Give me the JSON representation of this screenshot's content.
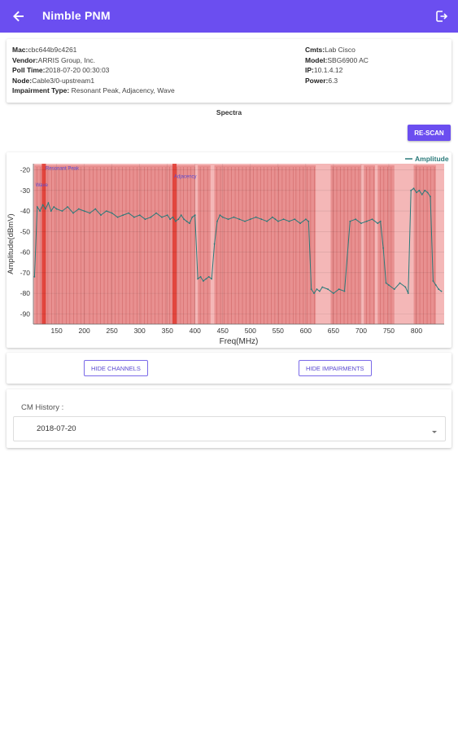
{
  "appbar": {
    "title": "Nimble PNM",
    "back_icon": "arrow-left-icon",
    "logout_icon": "logout-icon"
  },
  "device": {
    "mac_label": "Mac:",
    "mac": "cbc644b9c4261",
    "vendor_label": "Vendor:",
    "vendor": "ARRIS Group, Inc.",
    "poll_label": "Poll Time:",
    "poll_time": "2018-07-20 00:30:03",
    "node_label": "Node:",
    "node": "Cable3/0-upstream1",
    "impairment_label": "Impairment Type:",
    "impairment_type": "Resonant Peak, Adjacency, Wave",
    "cmts_label": "Cmts:",
    "cmts": "Lab Cisco",
    "model_label": "Model:",
    "model": "SBG6900 AC",
    "ip_label": "IP:",
    "ip": "10.1.4.12",
    "power_label": "Power:",
    "power": "6.3"
  },
  "spectra": {
    "title": "Spectra",
    "rescan_label": "RE-SCAN"
  },
  "chart_data": {
    "type": "line",
    "title": "",
    "xlabel": "Freq(MHz)",
    "ylabel": "Amplitude(dBmV)",
    "xlim": [
      108,
      850
    ],
    "ylim": [
      -95,
      -17
    ],
    "xticks": [
      150,
      200,
      250,
      300,
      350,
      400,
      450,
      500,
      550,
      600,
      650,
      700,
      750,
      800
    ],
    "yticks": [
      -20,
      -30,
      -40,
      -50,
      -60,
      -70,
      -80,
      -90
    ],
    "grid": true,
    "legend": "top-right",
    "series": [
      {
        "name": "Amplitude",
        "color": "#2a7a7a",
        "x": [
          110,
          115,
          120,
          125,
          130,
          135,
          140,
          145,
          150,
          160,
          170,
          180,
          190,
          200,
          210,
          220,
          230,
          240,
          250,
          260,
          270,
          280,
          290,
          300,
          310,
          320,
          330,
          340,
          350,
          355,
          360,
          365,
          370,
          375,
          380,
          385,
          390,
          395,
          400,
          405,
          410,
          415,
          420,
          425,
          430,
          435,
          440,
          445,
          450,
          460,
          470,
          480,
          490,
          500,
          510,
          520,
          530,
          540,
          545,
          550,
          560,
          570,
          580,
          590,
          600,
          605,
          610,
          615,
          620,
          625,
          630,
          640,
          650,
          660,
          670,
          680,
          690,
          700,
          710,
          720,
          730,
          735,
          740,
          745,
          750,
          760,
          770,
          780,
          785,
          790,
          795,
          800,
          805,
          810,
          815,
          820,
          825,
          830,
          835,
          840,
          845
        ],
        "y": [
          -72,
          -38,
          -40,
          -37,
          -39,
          -36,
          -40,
          -38,
          -39,
          -40,
          -38,
          -41,
          -39,
          -40,
          -41,
          -39,
          -42,
          -40,
          -41,
          -43,
          -42,
          -41,
          -43,
          -42,
          -44,
          -43,
          -41,
          -43,
          -42,
          -44,
          -43,
          -45,
          -44,
          -42,
          -44,
          -45,
          -46,
          -43,
          -42,
          -73,
          -72,
          -74,
          -73,
          -72,
          -73,
          -56,
          -45,
          -42,
          -43,
          -44,
          -43,
          -44,
          -45,
          -44,
          -43,
          -44,
          -45,
          -43,
          -44,
          -45,
          -44,
          -45,
          -44,
          -46,
          -44,
          -45,
          -78,
          -80,
          -78,
          -79,
          -77,
          -78,
          -80,
          -78,
          -79,
          -45,
          -44,
          -46,
          -45,
          -44,
          -46,
          -45,
          -58,
          -75,
          -76,
          -78,
          -75,
          -77,
          -80,
          -30,
          -29,
          -31,
          -30,
          -32,
          -30,
          -31,
          -33,
          -74,
          -76,
          -78,
          -79
        ]
      }
    ],
    "channels": [
      [
        110,
        143
      ],
      [
        143,
        205
      ],
      [
        205,
        238
      ],
      [
        238,
        310
      ],
      [
        310,
        343
      ],
      [
        343,
        375
      ],
      [
        375,
        400
      ],
      [
        405,
        428
      ],
      [
        435,
        520
      ],
      [
        520,
        578
      ],
      [
        578,
        618
      ],
      [
        645,
        700
      ],
      [
        705,
        725
      ],
      [
        730,
        760
      ],
      [
        795,
        835
      ]
    ],
    "impairment_regions": [
      [
        108,
        850
      ]
    ],
    "impairment_lines": [
      127,
      363
    ],
    "annotations": [
      {
        "text": "Resonant Peak",
        "x": 130,
        "y": -20
      },
      {
        "text": "Adjacency",
        "x": 362,
        "y": -24
      },
      {
        "text": "Wave",
        "x": 112,
        "y": -28
      }
    ]
  },
  "controls": {
    "hide_channels_label": "HIDE CHANNELS",
    "hide_impairments_label": "HIDE IMPAIRMENTS"
  },
  "history": {
    "label": "CM History :",
    "selected": "2018-07-20",
    "caret_icon": "caret-down-icon"
  }
}
